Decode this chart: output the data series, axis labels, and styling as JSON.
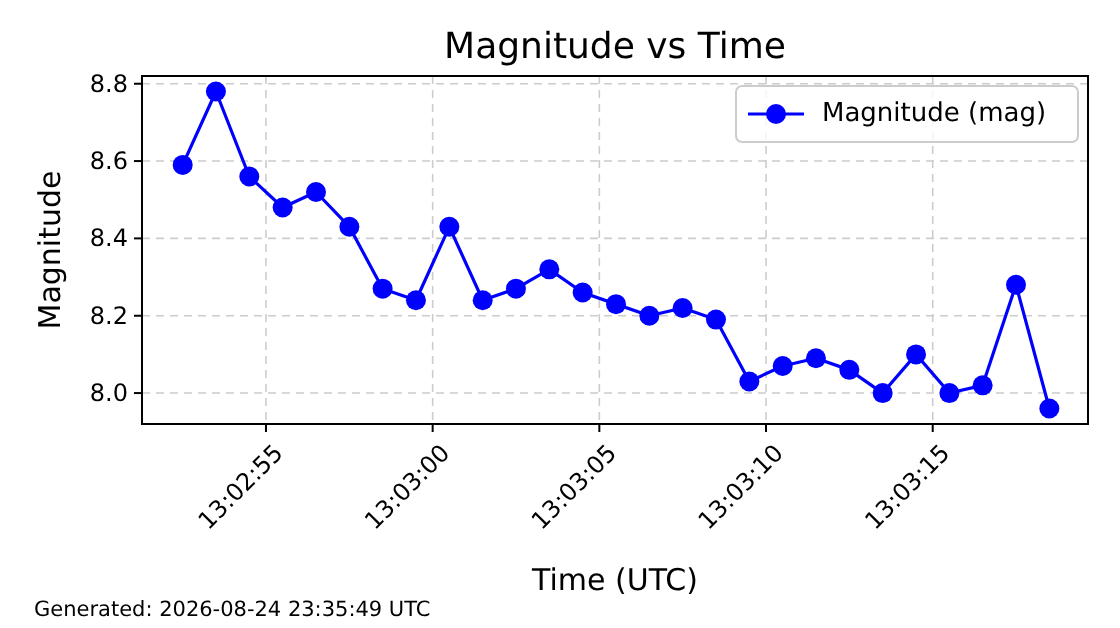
{
  "chart_data": {
    "type": "line",
    "title": "Magnitude vs Time",
    "xlabel": "Time (UTC)",
    "ylabel": "Magnitude",
    "annotations": [
      "Generated: 2026-08-24 23:35:49 UTC"
    ],
    "x": [
      13.047917,
      13.048194,
      13.048472,
      13.04875,
      13.049028,
      13.049306,
      13.049583,
      13.049861,
      13.050139,
      13.050417,
      13.050694,
      13.050972,
      13.05125,
      13.051528,
      13.051806,
      13.052083,
      13.052361,
      13.052639,
      13.052917,
      13.053194,
      13.053472,
      13.05375,
      13.054028,
      13.054306,
      13.054583,
      13.054861,
      13.055139
    ],
    "series": [
      {
        "name": "Magnitude (mag)",
        "color": "#0000ff",
        "values": [
          8.59,
          8.78,
          8.56,
          8.48,
          8.52,
          8.43,
          8.27,
          8.24,
          8.43,
          8.24,
          8.27,
          8.32,
          8.26,
          8.23,
          8.2,
          8.22,
          8.19,
          8.03,
          8.07,
          8.09,
          8.06,
          8.0,
          8.1,
          8.0,
          8.02,
          8.28,
          7.96
        ]
      }
    ],
    "xlim": [
      13.047578,
      13.055461
    ],
    "xticks": [
      {
        "value": 13.048611,
        "label": "13:02:55"
      },
      {
        "value": 13.05,
        "label": "13:03:00"
      },
      {
        "value": 13.051389,
        "label": "13:03:05"
      },
      {
        "value": 13.052778,
        "label": "13:03:10"
      },
      {
        "value": 13.054167,
        "label": "13:03:15"
      }
    ],
    "ylim": [
      7.92,
      8.82
    ],
    "yticks": [
      {
        "value": 8,
        "label": "8.0"
      },
      8.2,
      8.4,
      8.6,
      8.8
    ],
    "grid": true,
    "legend": "top right",
    "marker": "circle",
    "line_style": "solid"
  }
}
